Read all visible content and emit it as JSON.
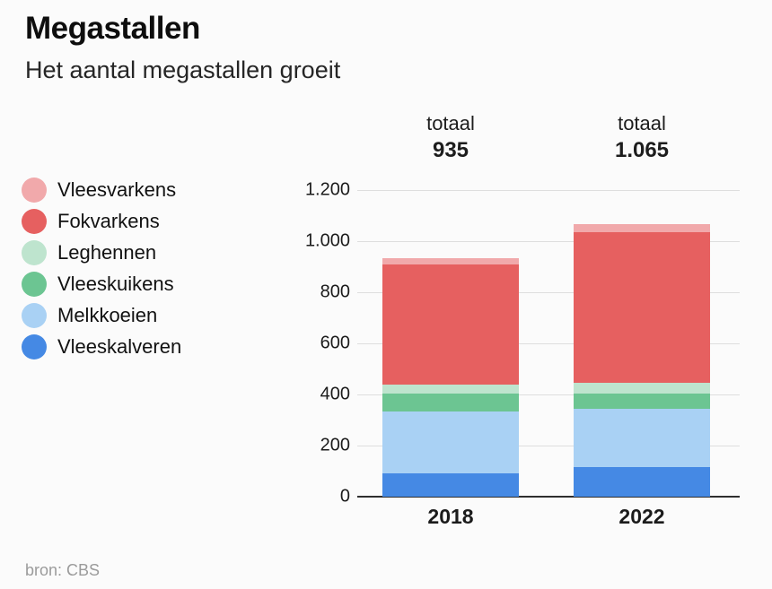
{
  "page": {
    "title": "Megastallen",
    "subtitle": "Het aantal megastallen groeit",
    "source": "bron: CBS"
  },
  "chart_data": {
    "type": "bar",
    "stacked": true,
    "title": "Megastallen",
    "subtitle": "Het aantal megastallen groeit",
    "categories": [
      "2018",
      "2022"
    ],
    "totals": [
      {
        "label": "totaal",
        "value": "935"
      },
      {
        "label": "totaal",
        "value": "1.065"
      }
    ],
    "series": [
      {
        "name": "Vleesvarkens",
        "color": "#F1A9AB",
        "values": [
          25,
          30
        ]
      },
      {
        "name": "Fokvarkens",
        "color": "#E66060",
        "values": [
          470,
          590
        ]
      },
      {
        "name": "Leghennen",
        "color": "#BEE4CE",
        "values": [
          35,
          40
        ]
      },
      {
        "name": "Vleeskuikens",
        "color": "#6CC592",
        "values": [
          70,
          60
        ]
      },
      {
        "name": "Melkkoeien",
        "color": "#A9D1F4",
        "values": [
          245,
          230
        ]
      },
      {
        "name": "Vleeskalveren",
        "color": "#4589E4",
        "values": [
          90,
          115
        ]
      }
    ],
    "ylim": [
      0,
      1200
    ],
    "ytick_step": 200,
    "ytick_labels": [
      "0",
      "200",
      "400",
      "600",
      "800",
      "1.000",
      "1.200"
    ],
    "grid": true,
    "legend_position": "left",
    "source": "bron: CBS"
  }
}
